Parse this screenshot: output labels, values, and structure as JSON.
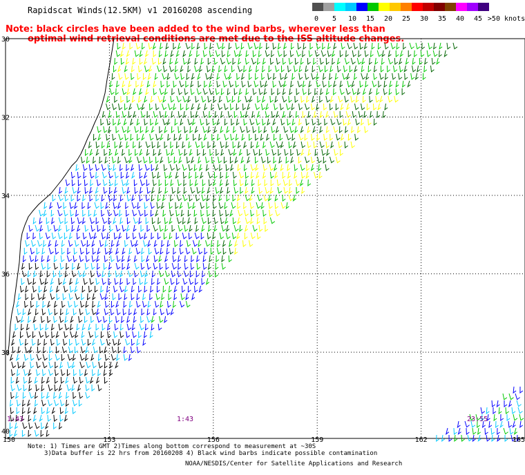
{
  "title": "Rapidscat Winds(12.5KM) v1 20160208 ascending",
  "note": {
    "line1": "Note: black circles have been added to the wind barbs, wherever less than",
    "line2": "optimal wind retrieval conditions are met due to the ISS altitude changes."
  },
  "legend": {
    "units": ">50 knots",
    "labels": [
      "0",
      "5",
      "10",
      "15",
      "20",
      "25",
      "30",
      "35",
      "40",
      "45"
    ],
    "colors": [
      "#505050",
      "#a0a0a0",
      "#00ffff",
      "#00c8ff",
      "#0000ff",
      "#00c800",
      "#ffff00",
      "#ffc800",
      "#ff8000",
      "#ff0000",
      "#c00000",
      "#800000",
      "#804000",
      "#ff00ff",
      "#a000ff",
      "#400080"
    ]
  },
  "map": {
    "lat_labels": [
      "30",
      "32",
      "34",
      "36",
      "38",
      "40"
    ],
    "lon_labels": [
      "150",
      "153",
      "156",
      "159",
      "162",
      "165"
    ],
    "time_labels": [
      "1:43",
      "1:43",
      "23:55"
    ],
    "wind_colors": {
      "calm": "#000000",
      "light": "#00c8ff",
      "moderate": "#0000ff",
      "fresh": "#00c800",
      "strong": "#006400",
      "gale": "#ffff00",
      "storm": "#ffc800"
    }
  },
  "footnote": {
    "line1": "Note: 1) Times are GMT 2)Times along bottom correspond to measurement at ~30S",
    "line2": "3)Data buffer is 22 hrs from 20160208 4) Black wind barbs indicate possible contamination"
  },
  "credit": "NOAA/NESDIS/Center for Satellite Applications and Research"
}
